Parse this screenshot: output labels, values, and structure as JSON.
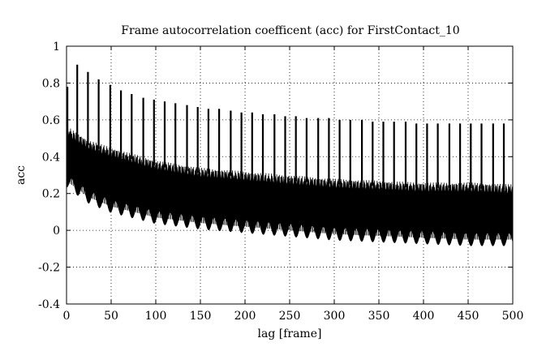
{
  "chart_data": {
    "type": "line",
    "title": "Frame autocorrelation coefficent (acc) for FirstContact_10",
    "xlabel": "lag [frame]",
    "ylabel": "acc",
    "xlim": [
      0,
      500
    ],
    "ylim": [
      -0.4,
      1
    ],
    "xticks": [
      0,
      50,
      100,
      150,
      200,
      250,
      300,
      350,
      400,
      450,
      500
    ],
    "yticks": [
      -0.4,
      -0.2,
      0,
      0.2,
      0.4,
      0.6,
      0.8,
      1
    ],
    "xtick_labels": [
      "0",
      "50",
      "100",
      "150",
      "200",
      "250",
      "300",
      "350",
      "400",
      "450",
      "500"
    ],
    "ytick_labels": [
      "-0.4",
      "-0.2",
      "0",
      "0.2",
      "0.4",
      "0.6",
      "0.8",
      "1"
    ],
    "grid": true,
    "grid_style": "dotted",
    "series_color": "#000000",
    "series": [
      {
        "description": "dense oscillating autocorrelation, envelope per lag",
        "envelope_x": [
          0,
          5,
          25,
          50,
          100,
          150,
          200,
          250,
          300,
          350,
          400,
          450,
          500
        ],
        "envelope_upper": [
          0.55,
          0.52,
          0.46,
          0.42,
          0.35,
          0.31,
          0.29,
          0.27,
          0.25,
          0.24,
          0.23,
          0.23,
          0.22
        ],
        "envelope_lower": [
          0.27,
          0.25,
          0.18,
          0.13,
          0.07,
          0.04,
          0.02,
          0.0,
          -0.02,
          -0.03,
          -0.04,
          -0.05,
          -0.05
        ],
        "peak_lags": [
          1,
          12,
          24,
          36,
          49,
          61,
          73,
          86,
          98,
          110,
          122,
          135,
          147,
          159,
          171,
          184,
          196,
          208,
          220,
          233,
          245,
          257,
          269,
          282,
          294,
          306,
          318,
          331,
          343,
          355,
          367,
          380,
          392,
          404,
          416,
          429,
          441,
          453,
          465,
          478,
          490
        ],
        "peak_values": [
          0.78,
          0.9,
          0.86,
          0.82,
          0.79,
          0.76,
          0.74,
          0.72,
          0.71,
          0.7,
          0.69,
          0.68,
          0.67,
          0.66,
          0.66,
          0.65,
          0.64,
          0.64,
          0.63,
          0.63,
          0.62,
          0.62,
          0.61,
          0.61,
          0.61,
          0.6,
          0.6,
          0.6,
          0.59,
          0.59,
          0.59,
          0.59,
          0.58,
          0.58,
          0.58,
          0.58,
          0.58,
          0.58,
          0.58,
          0.58,
          0.58
        ]
      }
    ]
  }
}
